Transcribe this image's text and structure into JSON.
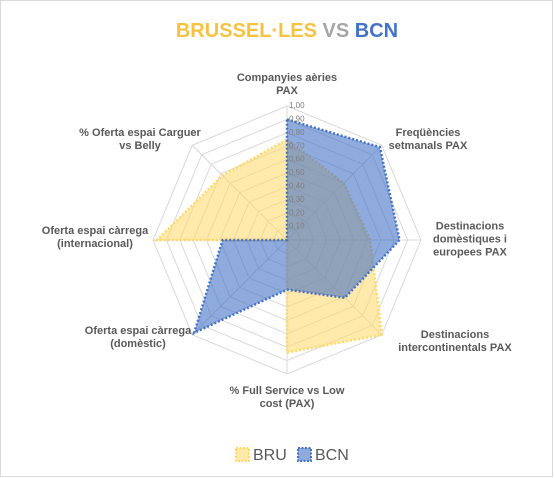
{
  "chart_data": {
    "type": "radar",
    "title": [
      "BRUSSEL·LES",
      "VS",
      "BCN"
    ],
    "title_colors": [
      "#f5c342",
      "#a6a6a6",
      "#4472c4"
    ],
    "categories": [
      "Companyies aèries PAX",
      "Freqüències setmanals PAX",
      "Destinacions domèstiques i europees PAX",
      "Destinacions intercontinentals PAX",
      "% Full Service vs Low cost (PAX)",
      "Oferta espai càrrega (domèstic)",
      "Oferta espai càrrega (internacional)",
      "% Oferta espai Carguer vs Belly"
    ],
    "series": [
      {
        "name": "BRU",
        "color": "#ffd966",
        "values": [
          0.75,
          0.6,
          0.62,
          1.0,
          0.84,
          0.0,
          0.97,
          0.68
        ]
      },
      {
        "name": "BCN",
        "color": "#4472c4",
        "values": [
          0.9,
          0.98,
          0.84,
          0.61,
          0.37,
          0.98,
          0.48,
          0.0
        ]
      }
    ],
    "rlim": [
      0,
      1
    ],
    "rticks": [
      {
        "value": 0.1,
        "label": "0,10"
      },
      {
        "value": 0.2,
        "label": "0,20"
      },
      {
        "value": 0.3,
        "label": "0,30"
      },
      {
        "value": 0.4,
        "label": "0,40"
      },
      {
        "value": 0.5,
        "label": "0,50"
      },
      {
        "value": 0.6,
        "label": "0,60"
      },
      {
        "value": 0.7,
        "label": "0,70"
      },
      {
        "value": 0.8,
        "label": "0,80"
      },
      {
        "value": 0.9,
        "label": "0,90"
      },
      {
        "value": 1.0,
        "label": "1,00"
      }
    ],
    "grid": true,
    "legend": "bottom"
  }
}
